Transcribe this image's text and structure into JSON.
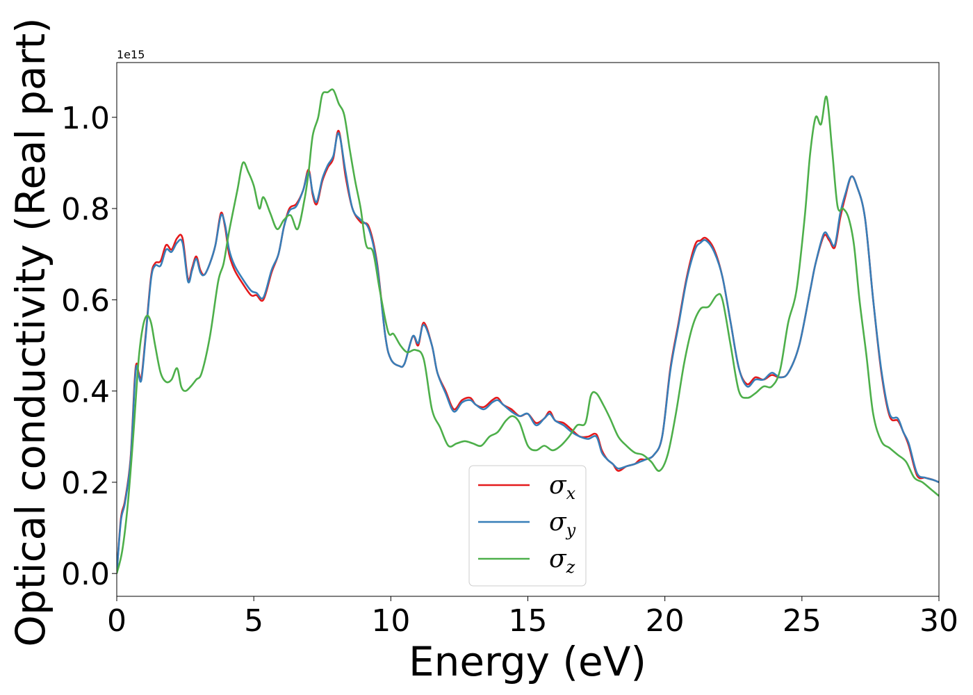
{
  "chart_data": {
    "type": "line",
    "xlabel": "Energy (eV)",
    "ylabel": "Optical conductivity (Real part)",
    "y_offset_label": "1e15",
    "xlim": [
      0,
      30
    ],
    "ylim": [
      -0.05,
      1.12
    ],
    "x_ticks": [
      0,
      5,
      10,
      15,
      20,
      25,
      30
    ],
    "y_ticks": [
      0.0,
      0.2,
      0.4,
      0.6,
      0.8,
      1.0
    ],
    "x_tick_labels": [
      "0",
      "5",
      "10",
      "15",
      "20",
      "25",
      "30"
    ],
    "y_tick_labels": [
      "0.0",
      "0.2",
      "0.4",
      "0.6",
      "0.8",
      "1.0"
    ],
    "grid": false,
    "legend_position": "lower-center",
    "series": [
      {
        "name": "σx",
        "base": "σ",
        "sub": "x",
        "color": "#e41a1c",
        "x": [
          0,
          0.15,
          0.3,
          0.5,
          0.65,
          0.72,
          0.8,
          0.9,
          1.05,
          1.25,
          1.4,
          1.6,
          1.8,
          2.0,
          2.2,
          2.4,
          2.6,
          2.75,
          2.9,
          3.05,
          3.2,
          3.4,
          3.6,
          3.8,
          3.95,
          4.1,
          4.3,
          4.6,
          4.9,
          5.1,
          5.35,
          5.65,
          5.9,
          6.1,
          6.3,
          6.55,
          6.8,
          7.0,
          7.15,
          7.3,
          7.5,
          7.7,
          7.9,
          8.1,
          8.35,
          8.6,
          8.9,
          9.2,
          9.5,
          9.8,
          10.0,
          10.3,
          10.5,
          10.8,
          11.0,
          11.2,
          11.5,
          11.7,
          12.0,
          12.3,
          12.6,
          12.9,
          13.1,
          13.4,
          13.7,
          13.9,
          14.1,
          14.4,
          14.7,
          15.0,
          15.3,
          15.6,
          15.8,
          16.0,
          16.3,
          16.6,
          16.9,
          17.2,
          17.5,
          17.7,
          17.9,
          18.1,
          18.3,
          18.6,
          18.9,
          19.1,
          19.3,
          19.6,
          19.9,
          20.2,
          20.5,
          20.8,
          21.1,
          21.3,
          21.5,
          21.8,
          22.1,
          22.4,
          22.7,
          23.0,
          23.3,
          23.6,
          23.9,
          24.2,
          24.5,
          24.9,
          25.3,
          25.5,
          25.8,
          26.0,
          26.2,
          26.4,
          26.6,
          26.8,
          27.0,
          27.3,
          27.6,
          27.9,
          28.2,
          28.5,
          28.7,
          28.9,
          29.2,
          29.5,
          29.8,
          30.0
        ],
        "y": [
          0.0,
          0.12,
          0.16,
          0.25,
          0.42,
          0.46,
          0.44,
          0.43,
          0.52,
          0.65,
          0.68,
          0.685,
          0.72,
          0.71,
          0.735,
          0.735,
          0.645,
          0.67,
          0.695,
          0.665,
          0.655,
          0.68,
          0.72,
          0.79,
          0.76,
          0.7,
          0.665,
          0.635,
          0.61,
          0.61,
          0.6,
          0.66,
          0.7,
          0.76,
          0.8,
          0.81,
          0.84,
          0.885,
          0.83,
          0.81,
          0.86,
          0.89,
          0.91,
          0.97,
          0.87,
          0.8,
          0.77,
          0.76,
          0.68,
          0.52,
          0.47,
          0.455,
          0.46,
          0.52,
          0.5,
          0.55,
          0.5,
          0.44,
          0.4,
          0.36,
          0.38,
          0.385,
          0.37,
          0.365,
          0.38,
          0.385,
          0.37,
          0.36,
          0.345,
          0.35,
          0.33,
          0.34,
          0.355,
          0.335,
          0.33,
          0.315,
          0.3,
          0.3,
          0.305,
          0.27,
          0.25,
          0.24,
          0.225,
          0.235,
          0.24,
          0.25,
          0.25,
          0.26,
          0.3,
          0.45,
          0.55,
          0.65,
          0.72,
          0.73,
          0.735,
          0.71,
          0.65,
          0.55,
          0.45,
          0.415,
          0.43,
          0.425,
          0.435,
          0.43,
          0.44,
          0.5,
          0.62,
          0.68,
          0.74,
          0.73,
          0.715,
          0.78,
          0.83,
          0.87,
          0.85,
          0.78,
          0.6,
          0.44,
          0.345,
          0.335,
          0.31,
          0.28,
          0.215,
          0.21,
          0.205,
          0.2
        ]
      },
      {
        "name": "σy",
        "base": "σ",
        "sub": "y",
        "color": "#377eb8",
        "x": [
          0,
          0.15,
          0.3,
          0.5,
          0.65,
          0.72,
          0.8,
          0.9,
          1.05,
          1.25,
          1.4,
          1.6,
          1.8,
          2.0,
          2.2,
          2.4,
          2.6,
          2.75,
          2.9,
          3.05,
          3.2,
          3.4,
          3.6,
          3.8,
          3.95,
          4.1,
          4.3,
          4.6,
          4.9,
          5.1,
          5.35,
          5.65,
          5.9,
          6.1,
          6.3,
          6.55,
          6.8,
          7.0,
          7.15,
          7.3,
          7.5,
          7.7,
          7.9,
          8.1,
          8.35,
          8.6,
          8.9,
          9.2,
          9.5,
          9.8,
          10.0,
          10.3,
          10.5,
          10.8,
          11.0,
          11.2,
          11.5,
          11.7,
          12.0,
          12.3,
          12.6,
          12.9,
          13.1,
          13.4,
          13.7,
          13.9,
          14.1,
          14.4,
          14.7,
          15.0,
          15.3,
          15.6,
          15.8,
          16.0,
          16.3,
          16.6,
          16.9,
          17.2,
          17.5,
          17.7,
          17.9,
          18.1,
          18.3,
          18.6,
          18.9,
          19.1,
          19.3,
          19.6,
          19.9,
          20.2,
          20.5,
          20.8,
          21.1,
          21.3,
          21.5,
          21.8,
          22.1,
          22.4,
          22.7,
          23.0,
          23.3,
          23.6,
          23.9,
          24.2,
          24.5,
          24.9,
          25.3,
          25.5,
          25.8,
          26.0,
          26.2,
          26.4,
          26.6,
          26.8,
          27.0,
          27.3,
          27.6,
          27.9,
          28.2,
          28.5,
          28.7,
          28.9,
          29.2,
          29.5,
          29.8,
          30.0
        ],
        "y": [
          0.0,
          0.115,
          0.155,
          0.245,
          0.41,
          0.455,
          0.435,
          0.425,
          0.515,
          0.645,
          0.675,
          0.675,
          0.71,
          0.705,
          0.725,
          0.725,
          0.64,
          0.665,
          0.69,
          0.66,
          0.655,
          0.68,
          0.72,
          0.785,
          0.765,
          0.71,
          0.675,
          0.645,
          0.62,
          0.615,
          0.605,
          0.665,
          0.7,
          0.76,
          0.795,
          0.805,
          0.84,
          0.88,
          0.835,
          0.815,
          0.865,
          0.895,
          0.915,
          0.965,
          0.88,
          0.8,
          0.775,
          0.755,
          0.675,
          0.52,
          0.47,
          0.455,
          0.46,
          0.52,
          0.505,
          0.545,
          0.5,
          0.44,
          0.395,
          0.355,
          0.375,
          0.38,
          0.37,
          0.36,
          0.375,
          0.38,
          0.37,
          0.355,
          0.345,
          0.35,
          0.325,
          0.34,
          0.35,
          0.335,
          0.325,
          0.31,
          0.3,
          0.295,
          0.3,
          0.265,
          0.25,
          0.24,
          0.23,
          0.235,
          0.24,
          0.245,
          0.25,
          0.26,
          0.3,
          0.445,
          0.545,
          0.645,
          0.71,
          0.725,
          0.73,
          0.705,
          0.65,
          0.55,
          0.45,
          0.41,
          0.425,
          0.425,
          0.44,
          0.43,
          0.44,
          0.5,
          0.62,
          0.68,
          0.745,
          0.735,
          0.72,
          0.79,
          0.835,
          0.87,
          0.85,
          0.78,
          0.6,
          0.445,
          0.35,
          0.34,
          0.31,
          0.285,
          0.22,
          0.21,
          0.205,
          0.2
        ]
      },
      {
        "name": "σz",
        "base": "σ",
        "sub": "z",
        "color": "#4daf4a",
        "x": [
          0,
          0.2,
          0.4,
          0.6,
          0.8,
          0.95,
          1.1,
          1.25,
          1.4,
          1.6,
          1.8,
          2.0,
          2.2,
          2.35,
          2.5,
          2.7,
          2.9,
          3.1,
          3.4,
          3.7,
          3.9,
          4.1,
          4.4,
          4.6,
          4.8,
          5.0,
          5.2,
          5.35,
          5.6,
          5.85,
          6.1,
          6.35,
          6.6,
          6.85,
          7.0,
          7.15,
          7.35,
          7.5,
          7.7,
          7.9,
          8.1,
          8.3,
          8.5,
          8.7,
          8.9,
          9.1,
          9.35,
          9.6,
          9.9,
          10.1,
          10.35,
          10.6,
          10.9,
          11.2,
          11.5,
          11.8,
          12.1,
          12.4,
          12.7,
          13.0,
          13.3,
          13.6,
          13.9,
          14.2,
          14.45,
          14.7,
          15.0,
          15.3,
          15.6,
          15.9,
          16.2,
          16.5,
          16.8,
          17.1,
          17.3,
          17.5,
          17.75,
          18.0,
          18.3,
          18.6,
          18.9,
          19.2,
          19.5,
          19.8,
          20.1,
          20.4,
          20.7,
          21.0,
          21.3,
          21.6,
          21.9,
          22.1,
          22.4,
          22.7,
          23.0,
          23.3,
          23.6,
          23.9,
          24.2,
          24.5,
          24.8,
          25.1,
          25.3,
          25.5,
          25.7,
          25.9,
          26.1,
          26.3,
          26.5,
          26.7,
          26.9,
          27.1,
          27.35,
          27.6,
          27.9,
          28.2,
          28.5,
          28.8,
          29.1,
          29.4,
          29.7,
          30.0
        ],
        "y": [
          0.0,
          0.05,
          0.15,
          0.3,
          0.47,
          0.54,
          0.565,
          0.55,
          0.5,
          0.44,
          0.42,
          0.425,
          0.45,
          0.41,
          0.4,
          0.41,
          0.425,
          0.44,
          0.52,
          0.64,
          0.68,
          0.75,
          0.84,
          0.9,
          0.88,
          0.85,
          0.8,
          0.825,
          0.79,
          0.755,
          0.775,
          0.785,
          0.755,
          0.82,
          0.88,
          0.96,
          1.0,
          1.05,
          1.055,
          1.06,
          1.03,
          1.005,
          0.93,
          0.86,
          0.8,
          0.72,
          0.705,
          0.62,
          0.53,
          0.525,
          0.5,
          0.485,
          0.49,
          0.47,
          0.36,
          0.32,
          0.28,
          0.285,
          0.29,
          0.285,
          0.28,
          0.3,
          0.31,
          0.335,
          0.345,
          0.33,
          0.28,
          0.27,
          0.28,
          0.27,
          0.28,
          0.3,
          0.325,
          0.33,
          0.39,
          0.395,
          0.37,
          0.34,
          0.3,
          0.28,
          0.265,
          0.26,
          0.245,
          0.225,
          0.26,
          0.35,
          0.46,
          0.54,
          0.58,
          0.585,
          0.61,
          0.6,
          0.5,
          0.4,
          0.385,
          0.395,
          0.41,
          0.41,
          0.445,
          0.55,
          0.62,
          0.78,
          0.92,
          1.0,
          0.985,
          1.045,
          0.93,
          0.805,
          0.8,
          0.78,
          0.72,
          0.6,
          0.48,
          0.35,
          0.29,
          0.275,
          0.26,
          0.245,
          0.21,
          0.2,
          0.185,
          0.17
        ]
      }
    ]
  }
}
